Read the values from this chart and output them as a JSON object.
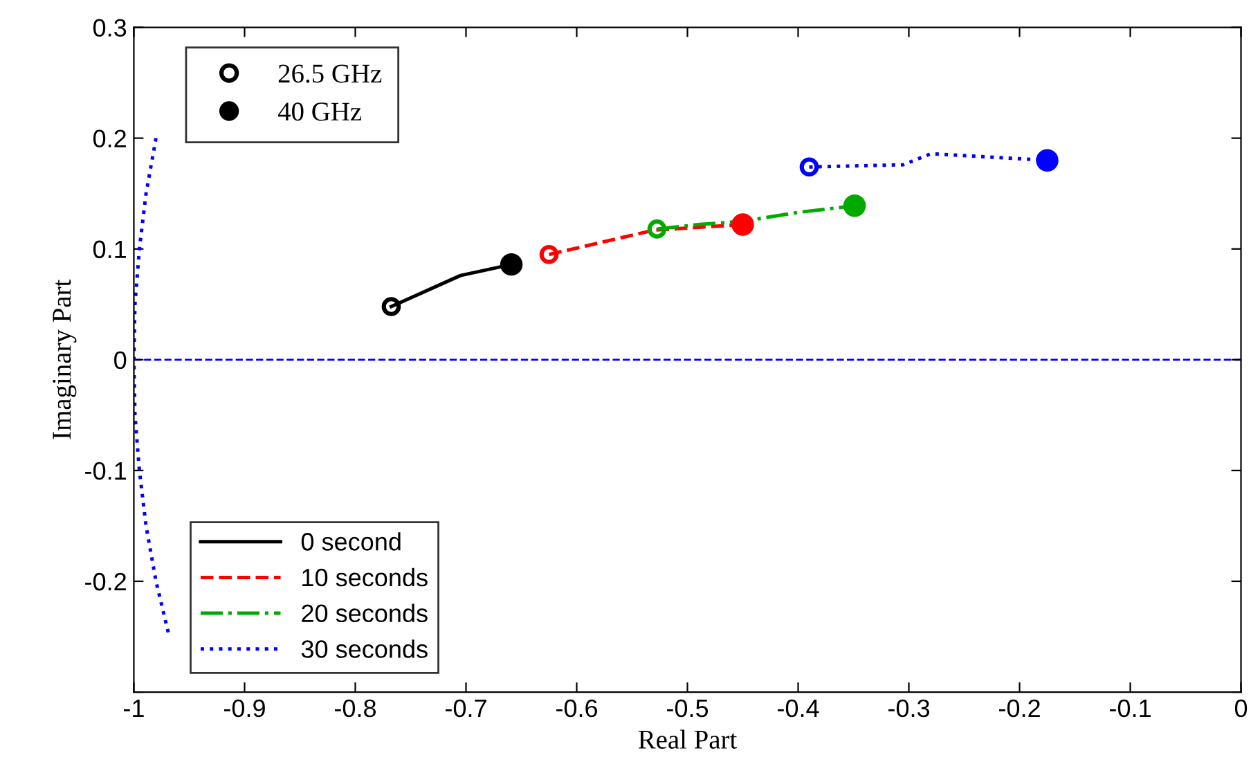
{
  "chart_data": {
    "type": "line",
    "xlabel": "Real Part",
    "ylabel": "Imaginary Part",
    "xlim": [
      -1,
      0
    ],
    "ylim": [
      -0.3,
      0.3
    ],
    "xticks": [
      -1,
      -0.9,
      -0.8,
      -0.7,
      -0.6,
      -0.5,
      -0.4,
      -0.3,
      -0.2,
      -0.1,
      0
    ],
    "yticks": [
      {
        "value": -0.3,
        "label": null
      },
      -0.2,
      -0.1,
      0,
      0.1,
      0.2,
      0.3
    ],
    "grid": false,
    "legend": "left",
    "ref_lines": [
      {
        "axis": "y",
        "value": 0,
        "color": "#0000ff",
        "line_style": "dashed"
      }
    ],
    "series": [
      {
        "name": "0 second",
        "color": "#000000",
        "line_style": "solid",
        "x": [
          -0.7675,
          -0.705,
          -0.659
        ],
        "values": [
          0.048,
          0.076,
          0.086
        ]
      },
      {
        "name": "10 seconds",
        "color": "#ff0000",
        "line_style": "dashed",
        "x": [
          -0.625,
          -0.53,
          -0.45
        ],
        "values": [
          0.095,
          0.117,
          0.122
        ]
      },
      {
        "name": "20 seconds",
        "color": "#00aa00",
        "line_style": "dashdot",
        "x": [
          -0.5275,
          -0.49,
          -0.45,
          -0.4,
          -0.349
        ],
        "values": [
          0.118,
          0.122,
          0.125,
          0.133,
          0.139
        ]
      },
      {
        "name": "30 seconds",
        "color": "#0000ff",
        "line_style": "dotted",
        "x": [
          -0.39,
          -0.305,
          -0.28,
          -0.175
        ],
        "values": [
          0.174,
          0.176,
          0.186,
          0.18
        ]
      },
      {
        "color": "#0000ff",
        "line_style": "dotted",
        "x": [
          -0.98,
          -0.989,
          -0.995,
          -0.999,
          -1,
          -0.999,
          -0.995,
          -0.989,
          -0.98,
          -0.968
        ],
        "values": [
          0.2,
          0.15,
          0.1,
          0.05,
          0,
          -0.05,
          -0.1,
          -0.15,
          -0.2,
          -0.25
        ]
      },
      {
        "name": "26.5 GHz",
        "type": "scatter",
        "marker": "circle",
        "color": "#000000",
        "x": [
          -0.7675,
          -0.625,
          -0.5275,
          -0.39
        ],
        "values": [
          0.048,
          0.095,
          0.118,
          0.174
        ],
        "colors": [
          "#000000",
          "#ff0000",
          "#00aa00",
          "#0000ff"
        ]
      },
      {
        "name": "40 GHz",
        "type": "bubble",
        "sizes": [
          1,
          1,
          1,
          1
        ],
        "color": "#000000",
        "x": [
          -0.659,
          -0.45,
          -0.349,
          -0.175
        ],
        "values": [
          0.086,
          0.122,
          0.139,
          0.18
        ],
        "colors": [
          "#000000",
          "#ff0000",
          "#00aa00",
          "#0000ff"
        ]
      }
    ]
  }
}
